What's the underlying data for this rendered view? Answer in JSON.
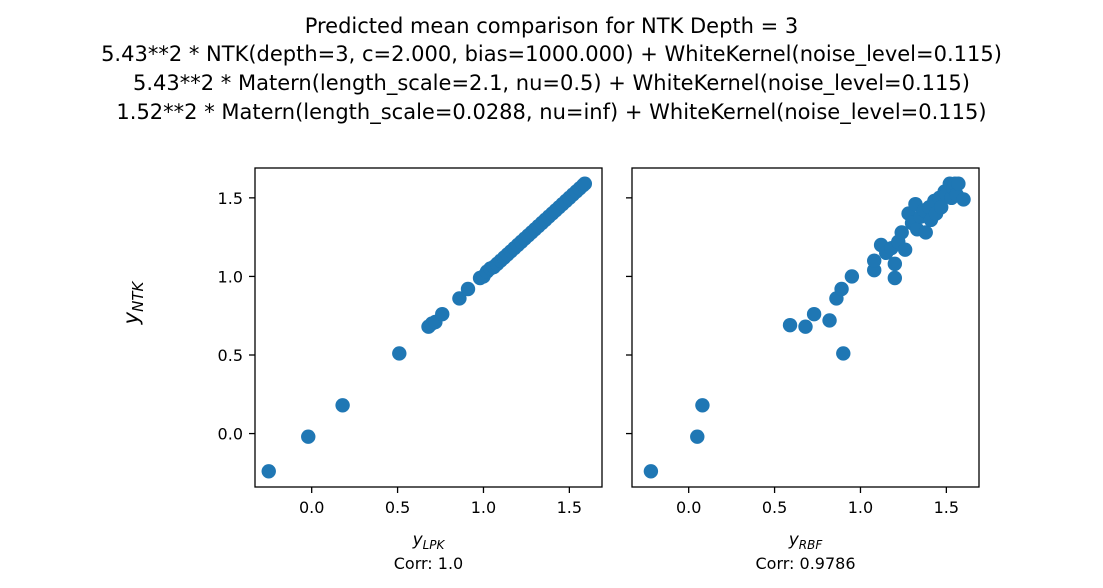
{
  "figure_title": [
    "Predicted mean comparison for NTK Depth = 3",
    "5.43**2 * NTK(depth=3, c=2.000, bias=1000.000) + WhiteKernel(noise_level=0.115)",
    "5.43**2 * Matern(length_scale=2.1, nu=0.5) + WhiteKernel(noise_level=0.115)",
    "1.52**2 * Matern(length_scale=0.0288, nu=inf) + WhiteKernel(noise_level=0.115)"
  ],
  "colors": {
    "points": "#1f77b4",
    "axes": "#000000",
    "background": "#ffffff"
  },
  "chart_data": [
    {
      "type": "scatter",
      "xlabel_main": "y",
      "xlabel_sub": "LPK",
      "ylabel_main": "y",
      "ylabel_sub": "NTK",
      "caption": "Corr: 1.0",
      "xlim": [
        -0.33,
        1.69
      ],
      "ylim": [
        -0.34,
        1.69
      ],
      "xticks": [
        0.0,
        0.5,
        1.0,
        1.5
      ],
      "yticks": [
        0.0,
        0.5,
        1.0,
        1.5
      ],
      "xtick_labels": [
        "0.0",
        "0.5",
        "1.0",
        "1.5"
      ],
      "ytick_labels": [
        "0.0",
        "0.5",
        "1.0",
        "1.5"
      ],
      "points": [
        [
          -0.25,
          -0.24
        ],
        [
          -0.02,
          -0.02
        ],
        [
          0.18,
          0.18
        ],
        [
          0.51,
          0.51
        ],
        [
          0.68,
          0.68
        ],
        [
          0.7,
          0.7
        ],
        [
          0.72,
          0.71
        ],
        [
          0.76,
          0.76
        ],
        [
          0.86,
          0.86
        ],
        [
          0.91,
          0.92
        ],
        [
          0.98,
          0.99
        ],
        [
          1.0,
          1.0
        ],
        [
          1.02,
          1.03
        ],
        [
          1.04,
          1.05
        ],
        [
          1.06,
          1.06
        ],
        [
          1.08,
          1.08
        ],
        [
          1.1,
          1.1
        ],
        [
          1.12,
          1.12
        ],
        [
          1.14,
          1.14
        ],
        [
          1.16,
          1.16
        ],
        [
          1.18,
          1.18
        ],
        [
          1.2,
          1.2
        ],
        [
          1.22,
          1.22
        ],
        [
          1.24,
          1.24
        ],
        [
          1.26,
          1.26
        ],
        [
          1.28,
          1.28
        ],
        [
          1.3,
          1.3
        ],
        [
          1.32,
          1.32
        ],
        [
          1.34,
          1.34
        ],
        [
          1.36,
          1.36
        ],
        [
          1.38,
          1.38
        ],
        [
          1.4,
          1.4
        ],
        [
          1.42,
          1.42
        ],
        [
          1.44,
          1.44
        ],
        [
          1.46,
          1.46
        ],
        [
          1.48,
          1.48
        ],
        [
          1.5,
          1.5
        ],
        [
          1.52,
          1.52
        ],
        [
          1.54,
          1.54
        ],
        [
          1.56,
          1.56
        ],
        [
          1.58,
          1.58
        ],
        [
          1.59,
          1.59
        ]
      ]
    },
    {
      "type": "scatter",
      "xlabel_main": "y",
      "xlabel_sub": "RBF",
      "caption": "Corr: 0.9786",
      "xlim": [
        -0.33,
        1.69
      ],
      "ylim": [
        -0.34,
        1.69
      ],
      "xticks": [
        0.0,
        0.5,
        1.0,
        1.5
      ],
      "yticks": [
        0.0,
        0.5,
        1.0,
        1.5
      ],
      "xtick_labels": [
        "0.0",
        "0.5",
        "1.0",
        "1.5"
      ],
      "ytick_labels": [],
      "points": [
        [
          -0.22,
          -0.24
        ],
        [
          0.05,
          -0.02
        ],
        [
          0.08,
          0.18
        ],
        [
          0.9,
          0.51
        ],
        [
          0.59,
          0.69
        ],
        [
          0.68,
          0.68
        ],
        [
          0.73,
          0.76
        ],
        [
          0.82,
          0.72
        ],
        [
          0.86,
          0.86
        ],
        [
          0.89,
          0.92
        ],
        [
          0.95,
          1.0
        ],
        [
          1.08,
          1.04
        ],
        [
          1.08,
          1.1
        ],
        [
          1.12,
          1.2
        ],
        [
          1.15,
          1.15
        ],
        [
          1.18,
          1.18
        ],
        [
          1.2,
          0.99
        ],
        [
          1.2,
          1.08
        ],
        [
          1.22,
          1.22
        ],
        [
          1.24,
          1.28
        ],
        [
          1.26,
          1.17
        ],
        [
          1.28,
          1.4
        ],
        [
          1.3,
          1.34
        ],
        [
          1.32,
          1.46
        ],
        [
          1.33,
          1.3
        ],
        [
          1.35,
          1.38
        ],
        [
          1.37,
          1.42
        ],
        [
          1.38,
          1.28
        ],
        [
          1.4,
          1.44
        ],
        [
          1.41,
          1.36
        ],
        [
          1.43,
          1.48
        ],
        [
          1.44,
          1.4
        ],
        [
          1.46,
          1.5
        ],
        [
          1.47,
          1.44
        ],
        [
          1.49,
          1.54
        ],
        [
          1.5,
          1.52
        ],
        [
          1.52,
          1.59
        ],
        [
          1.53,
          1.5
        ],
        [
          1.54,
          1.56
        ],
        [
          1.55,
          1.59
        ],
        [
          1.56,
          1.52
        ],
        [
          1.57,
          1.59
        ],
        [
          1.6,
          1.49
        ]
      ]
    }
  ]
}
